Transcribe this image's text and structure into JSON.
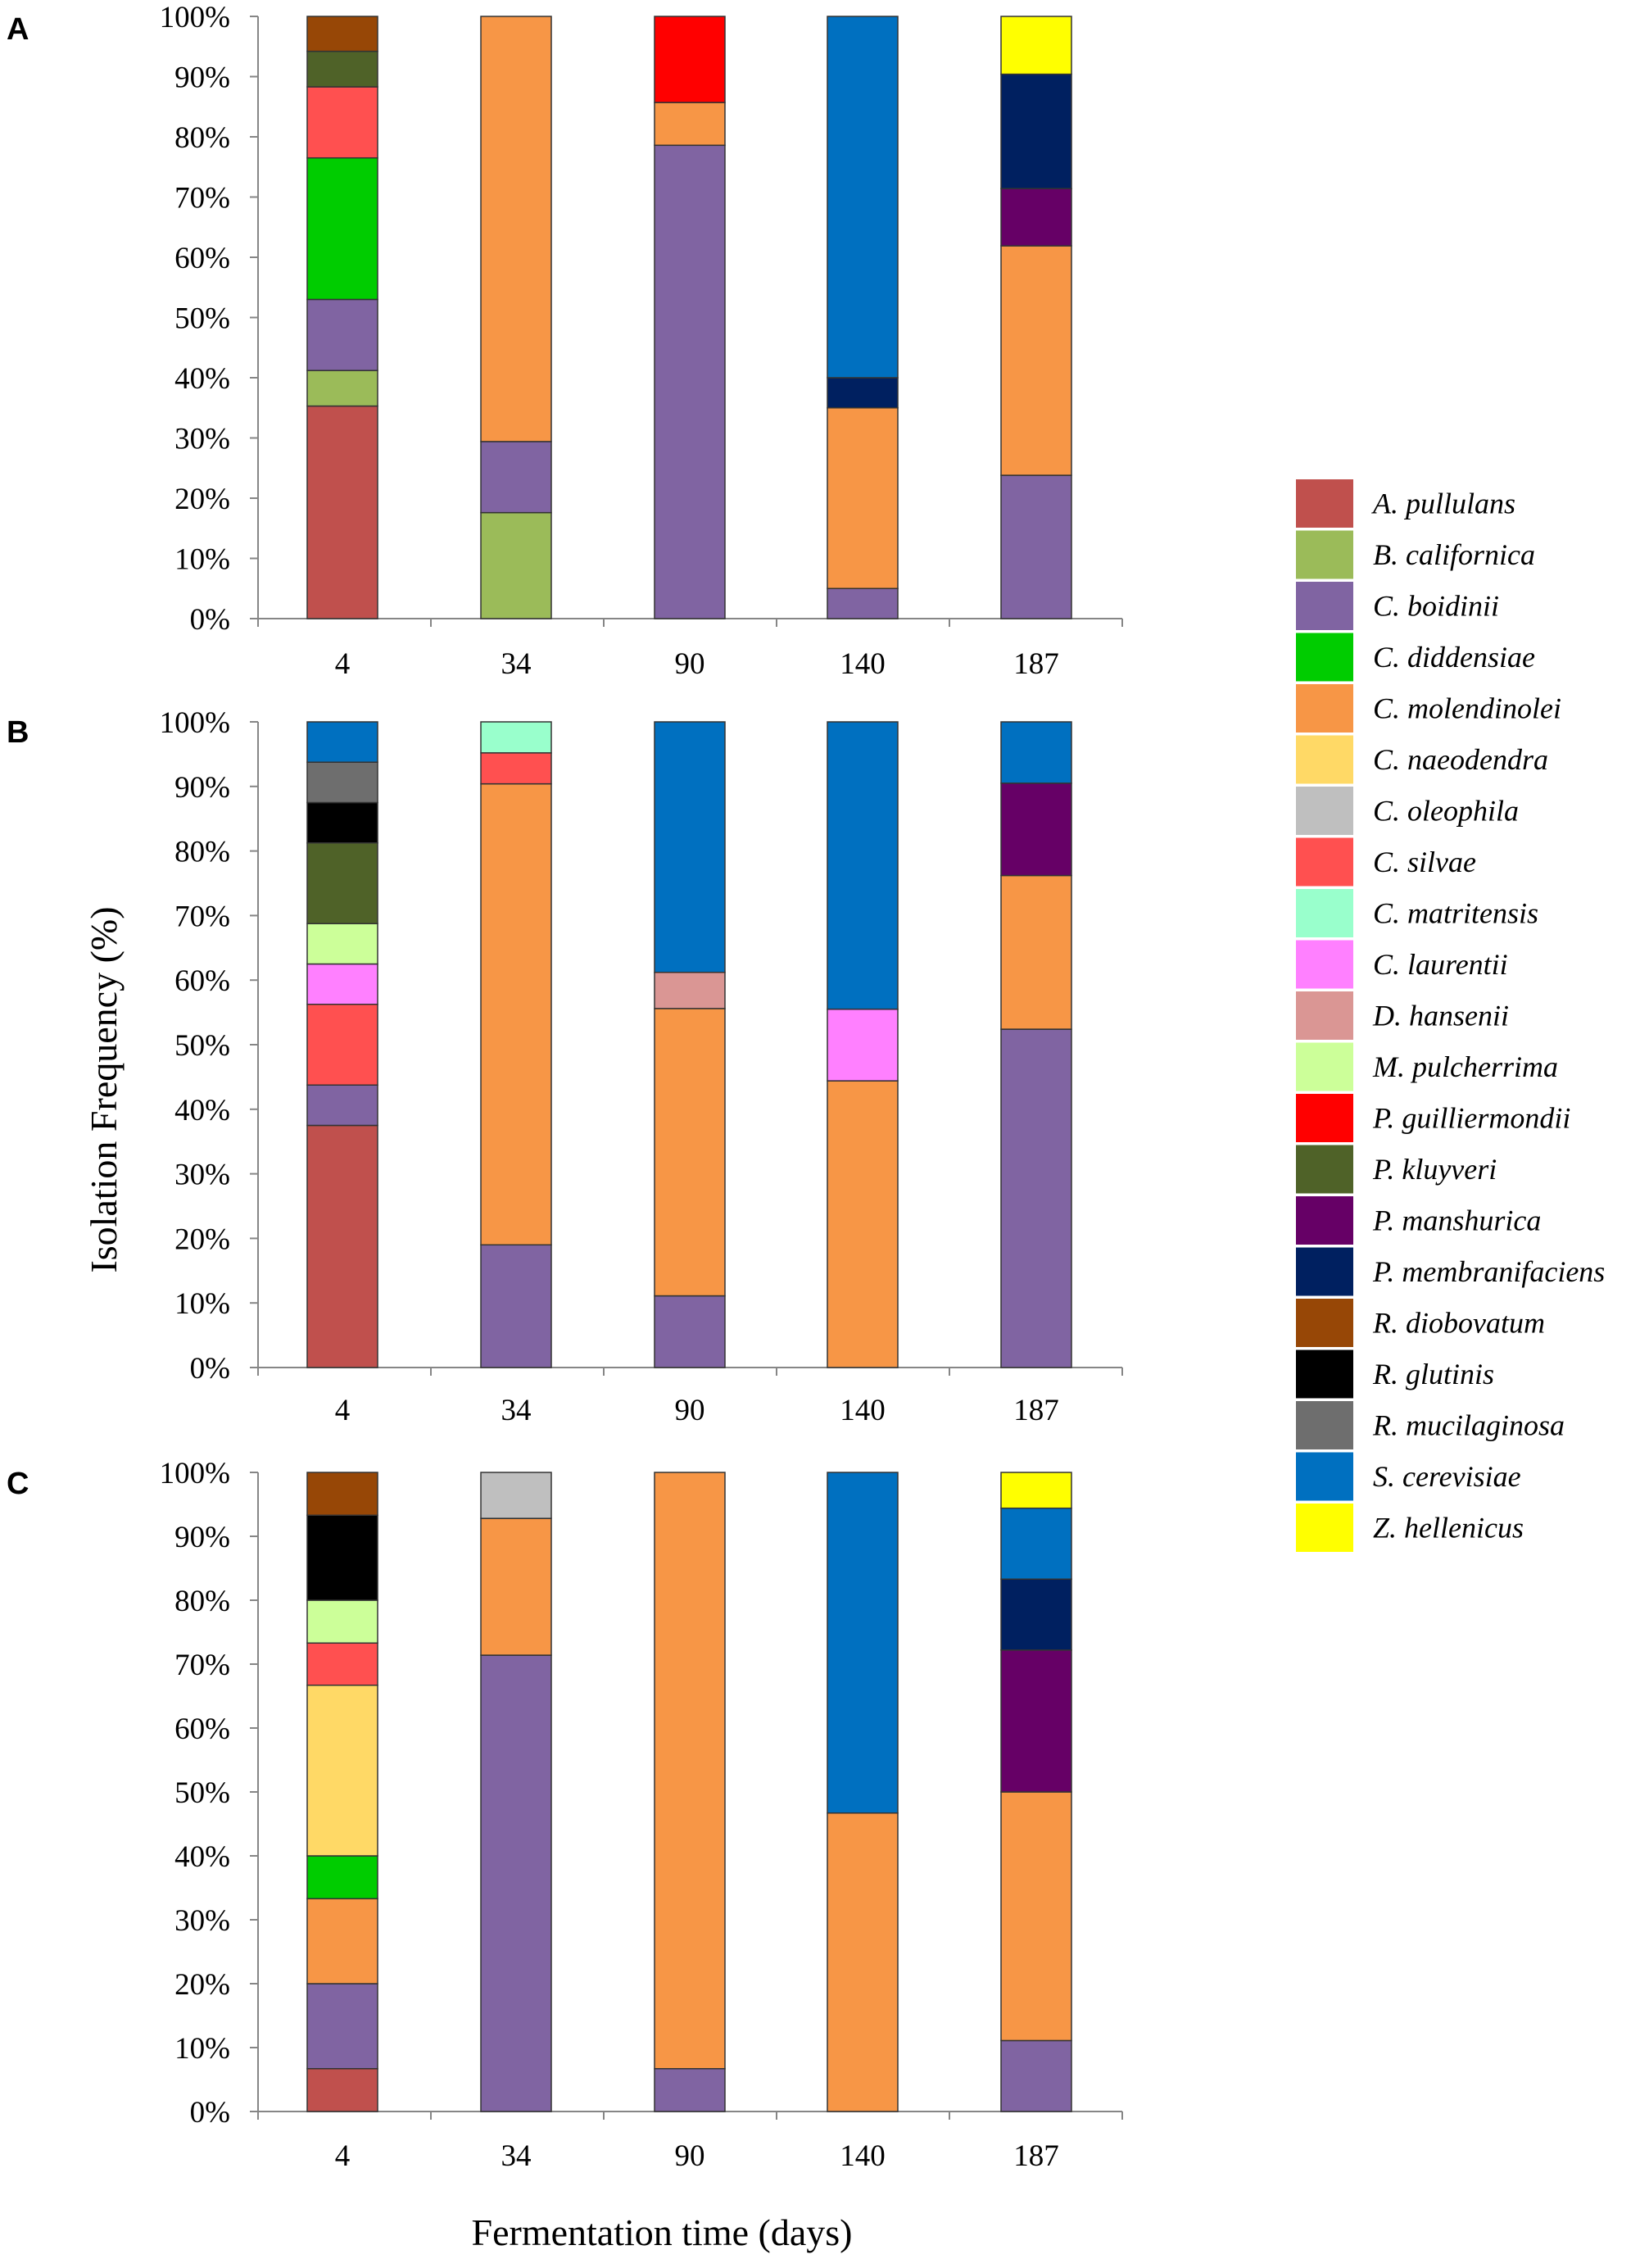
{
  "chart_data": {
    "type": "bar",
    "stacked": true,
    "ylabel": "Isolation Frequency (%)",
    "xlabel": "Fermentation time (days)",
    "ylim": [
      0,
      100
    ],
    "yticks": [
      "0%",
      "10%",
      "20%",
      "30%",
      "40%",
      "50%",
      "60%",
      "70%",
      "80%",
      "90%",
      "100%"
    ],
    "categories": [
      "4",
      "34",
      "90",
      "140",
      "187"
    ],
    "legend": {
      "position": "right",
      "entries": [
        {
          "name": "A. pullulans",
          "color": "#C0504D"
        },
        {
          "name": "B. californica",
          "color": "#9BBB59"
        },
        {
          "name": "C. boidinii",
          "color": "#8064A2"
        },
        {
          "name": "C. diddensiae",
          "color": "#00CC00"
        },
        {
          "name": "C. molendinolei",
          "color": "#F79646"
        },
        {
          "name": "C. naeodendra",
          "color": "#FFD966"
        },
        {
          "name": "C. oleophila",
          "color": "#BFBFBF"
        },
        {
          "name": "C. silvae",
          "color": "#FF5050"
        },
        {
          "name": "C. matritensis",
          "color": "#99FFCC"
        },
        {
          "name": "C. laurentii",
          "color": "#FF80FF"
        },
        {
          "name": "D. hansenii",
          "color": "#DA9694"
        },
        {
          "name": "M. pulcherrima",
          "color": "#CCFF99"
        },
        {
          "name": "P. guilliermondii",
          "color": "#FF0000"
        },
        {
          "name": "P. kluyveri",
          "color": "#4F6228"
        },
        {
          "name": "P. manshurica",
          "color": "#660066"
        },
        {
          "name": "P. membranifaciens",
          "color": "#002060"
        },
        {
          "name": "R. diobovatum",
          "color": "#974706"
        },
        {
          "name": "R. glutinis",
          "color": "#000000"
        },
        {
          "name": "R. mucilaginosa",
          "color": "#6E6E6E"
        },
        {
          "name": "S. cerevisiae",
          "color": "#0070C0"
        },
        {
          "name": "Z. hellenicus",
          "color": "#FFFF00"
        }
      ]
    },
    "panels": [
      {
        "label": "A",
        "bars": [
          {
            "category": "4",
            "segments": [
              {
                "species": "A. pullulans",
                "value": 35.3
              },
              {
                "species": "B. californica",
                "value": 5.9
              },
              {
                "species": "C. boidinii",
                "value": 11.8
              },
              {
                "species": "C. diddensiae",
                "value": 23.5
              },
              {
                "species": "C. silvae",
                "value": 11.8
              },
              {
                "species": "P. kluyveri",
                "value": 5.9
              },
              {
                "species": "R. diobovatum",
                "value": 5.8
              }
            ]
          },
          {
            "category": "34",
            "segments": [
              {
                "species": "B. californica",
                "value": 17.6
              },
              {
                "species": "C. boidinii",
                "value": 11.8
              },
              {
                "species": "C. molendinolei",
                "value": 70.6
              }
            ]
          },
          {
            "category": "90",
            "segments": [
              {
                "species": "C. boidinii",
                "value": 78.6
              },
              {
                "species": "C. molendinolei",
                "value": 7.1
              },
              {
                "species": "P. guilliermondii",
                "value": 14.3
              }
            ]
          },
          {
            "category": "140",
            "segments": [
              {
                "species": "C. boidinii",
                "value": 5.0
              },
              {
                "species": "C. molendinolei",
                "value": 30.0
              },
              {
                "species": "P. membranifaciens",
                "value": 5.0
              },
              {
                "species": "S. cerevisiae",
                "value": 60.0
              }
            ]
          },
          {
            "category": "187",
            "segments": [
              {
                "species": "C. boidinii",
                "value": 23.8
              },
              {
                "species": "C. molendinolei",
                "value": 38.1
              },
              {
                "species": "P. manshurica",
                "value": 9.5
              },
              {
                "species": "P. membranifaciens",
                "value": 19.0
              },
              {
                "species": "Z. hellenicus",
                "value": 9.6
              }
            ]
          }
        ]
      },
      {
        "label": "B",
        "bars": [
          {
            "category": "4",
            "segments": [
              {
                "species": "A. pullulans",
                "value": 37.5
              },
              {
                "species": "C. boidinii",
                "value": 6.25
              },
              {
                "species": "C. silvae",
                "value": 12.5
              },
              {
                "species": "C. laurentii",
                "value": 6.25
              },
              {
                "species": "M. pulcherrima",
                "value": 6.25
              },
              {
                "species": "P. kluyveri",
                "value": 12.5
              },
              {
                "species": "R. glutinis",
                "value": 6.25
              },
              {
                "species": "R. mucilaginosa",
                "value": 6.25
              },
              {
                "species": "S. cerevisiae",
                "value": 6.25
              }
            ]
          },
          {
            "category": "34",
            "segments": [
              {
                "species": "C. boidinii",
                "value": 19.0
              },
              {
                "species": "C. molendinolei",
                "value": 71.4
              },
              {
                "species": "C. silvae",
                "value": 4.8
              },
              {
                "species": "C. matritensis",
                "value": 4.8
              }
            ]
          },
          {
            "category": "90",
            "segments": [
              {
                "species": "C. boidinii",
                "value": 11.1
              },
              {
                "species": "C. molendinolei",
                "value": 44.5
              },
              {
                "species": "D. hansenii",
                "value": 5.6
              },
              {
                "species": "S. cerevisiae",
                "value": 38.8
              }
            ]
          },
          {
            "category": "140",
            "segments": [
              {
                "species": "C. molendinolei",
                "value": 44.4
              },
              {
                "species": "C. laurentii",
                "value": 11.1
              },
              {
                "species": "S. cerevisiae",
                "value": 44.5
              }
            ]
          },
          {
            "category": "187",
            "segments": [
              {
                "species": "C. boidinii",
                "value": 52.4
              },
              {
                "species": "C. molendinolei",
                "value": 23.8
              },
              {
                "species": "P. manshurica",
                "value": 14.3
              },
              {
                "species": "S. cerevisiae",
                "value": 9.5
              }
            ]
          }
        ]
      },
      {
        "label": "C",
        "bars": [
          {
            "category": "4",
            "segments": [
              {
                "species": "A. pullulans",
                "value": 6.7
              },
              {
                "species": "C. boidinii",
                "value": 13.3
              },
              {
                "species": "C. molendinolei",
                "value": 13.3
              },
              {
                "species": "C. diddensiae",
                "value": 6.7
              },
              {
                "species": "C. naeodendra",
                "value": 26.7
              },
              {
                "species": "C. silvae",
                "value": 6.6
              },
              {
                "species": "M. pulcherrima",
                "value": 6.7
              },
              {
                "species": "R. glutinis",
                "value": 13.3
              },
              {
                "species": "R. diobovatum",
                "value": 6.7
              }
            ]
          },
          {
            "category": "34",
            "segments": [
              {
                "species": "C. boidinii",
                "value": 71.4
              },
              {
                "species": "C. molendinolei",
                "value": 21.4
              },
              {
                "species": "C. oleophila",
                "value": 7.2
              }
            ]
          },
          {
            "category": "90",
            "segments": [
              {
                "species": "C. boidinii",
                "value": 6.7
              },
              {
                "species": "C. molendinolei",
                "value": 93.3
              }
            ]
          },
          {
            "category": "140",
            "segments": [
              {
                "species": "C. molendinolei",
                "value": 46.7
              },
              {
                "species": "S. cerevisiae",
                "value": 53.3
              }
            ]
          },
          {
            "category": "187",
            "segments": [
              {
                "species": "C. boidinii",
                "value": 11.1
              },
              {
                "species": "C. molendinolei",
                "value": 38.9
              },
              {
                "species": "P. manshurica",
                "value": 22.2
              },
              {
                "species": "P. membranifaciens",
                "value": 11.1
              },
              {
                "species": "S. cerevisiae",
                "value": 11.1
              },
              {
                "species": "Z. hellenicus",
                "value": 5.6
              }
            ]
          }
        ]
      }
    ]
  }
}
